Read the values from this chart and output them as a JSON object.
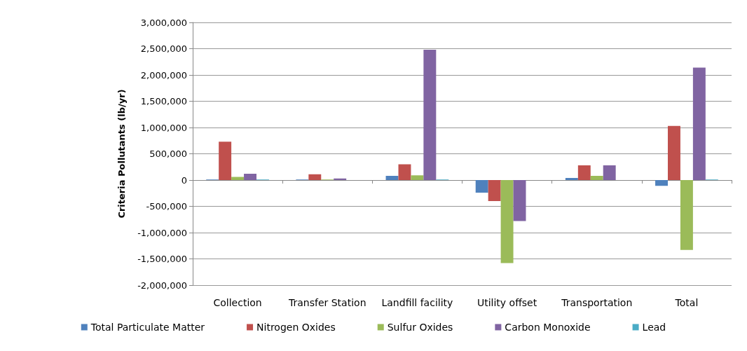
{
  "chart_data": {
    "type": "bar",
    "ylabel": "Criteria Pollutants (lb/yr)",
    "categories": [
      "Collection",
      "Transfer Station",
      "Landfill facility",
      "Utility offset",
      "Transportation",
      "Total"
    ],
    "series": [
      {
        "name": "Total Particulate Matter",
        "color": "#4f81bd",
        "values": [
          10000,
          10000,
          80000,
          -240000,
          40000,
          -110000
        ]
      },
      {
        "name": "Nitrogen Oxides",
        "color": "#c0504d",
        "values": [
          730000,
          110000,
          300000,
          -400000,
          280000,
          1030000
        ]
      },
      {
        "name": "Sulfur Oxides",
        "color": "#9bbb59",
        "values": [
          60000,
          10000,
          90000,
          -1580000,
          80000,
          -1330000
        ]
      },
      {
        "name": "Carbon Monoxide",
        "color": "#8064a2",
        "values": [
          120000,
          30000,
          2480000,
          -780000,
          280000,
          2140000
        ]
      },
      {
        "name": "Lead",
        "color": "#4bacc6",
        "values": [
          10000,
          0,
          10000,
          0,
          0,
          10000
        ]
      }
    ],
    "ylim": [
      -2000000,
      3000000
    ],
    "yticks": [
      {
        "value": -2000000,
        "label": "-2,000,000"
      },
      {
        "value": -1500000,
        "label": "-1,500,000"
      },
      {
        "value": -1000000,
        "label": "-1,000,000"
      },
      {
        "value": -500000,
        "label": "-500,000"
      },
      0,
      {
        "value": 500000,
        "label": "500,000"
      },
      {
        "value": 1000000,
        "label": "1,000,000"
      },
      {
        "value": 1500000,
        "label": "1,500,000"
      },
      {
        "value": 2000000,
        "label": "2,000,000"
      },
      {
        "value": 2500000,
        "label": "2,500,000"
      },
      {
        "value": 3000000,
        "label": "3,000,000"
      }
    ],
    "grid": "y",
    "legend": "bottom"
  }
}
